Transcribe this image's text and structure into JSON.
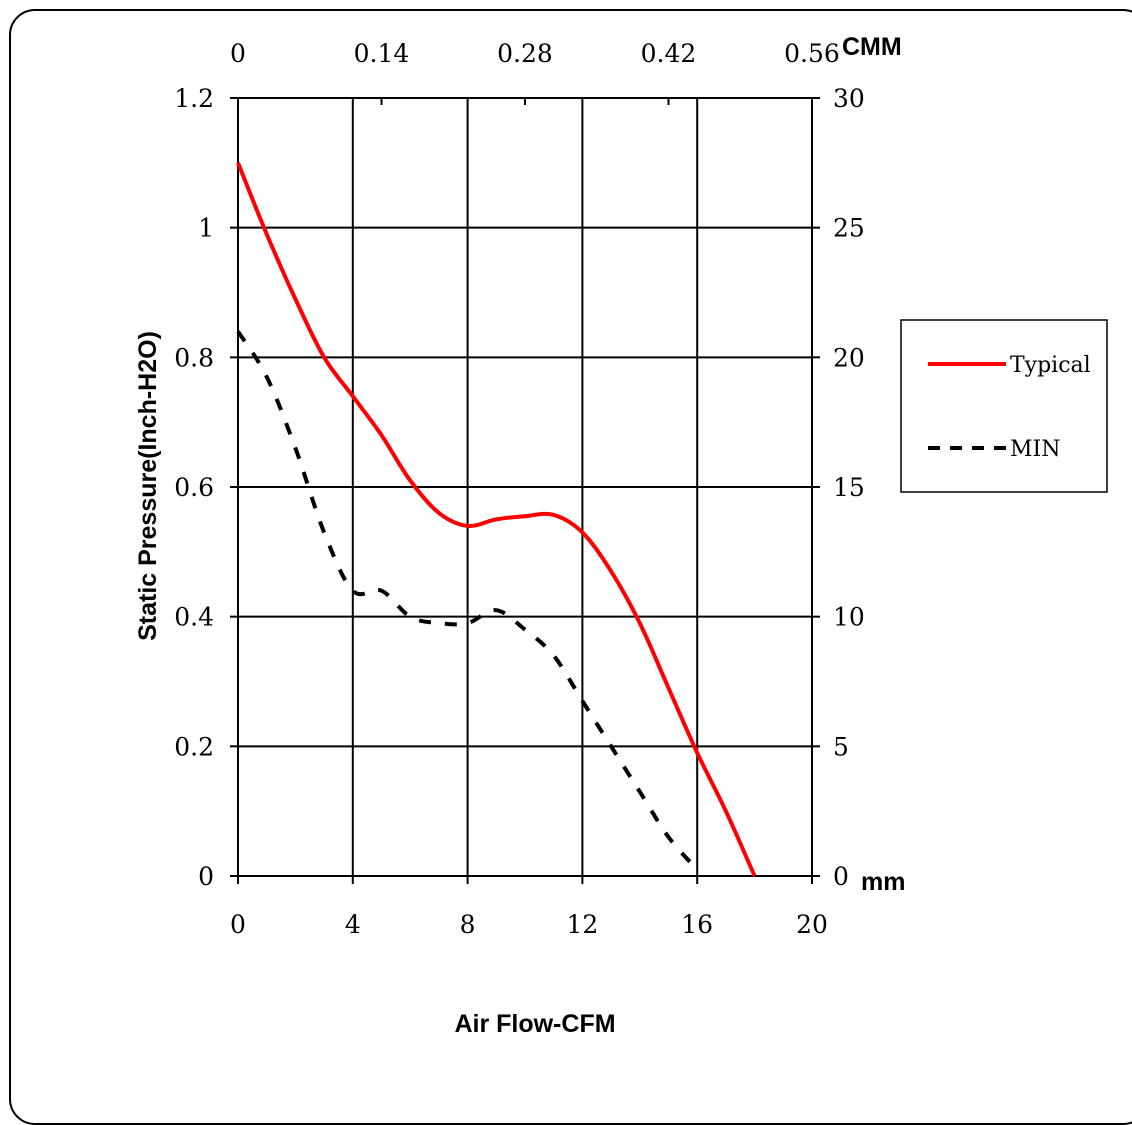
{
  "chart_data": {
    "type": "line",
    "xlabel": "Air Flow-CFM",
    "ylabel": "Static Pressure(Inch-H2O)",
    "x_ticks": [
      "0",
      "4",
      "8",
      "12",
      "16",
      "20"
    ],
    "xlim": [
      0,
      20
    ],
    "y_ticks": [
      "0",
      "0.2",
      "0.4",
      "0.6",
      "0.8",
      "1",
      "1.2"
    ],
    "ylim": [
      0,
      1.2
    ],
    "x2_label": "CMM",
    "x2_ticks": [
      "0",
      "0.14",
      "0.28",
      "0.42",
      "0.56"
    ],
    "y2_label": "mm",
    "y2_ticks": [
      "0",
      "5",
      "10",
      "15",
      "20",
      "25",
      "30"
    ],
    "grid": true,
    "legend_position": "right",
    "series": [
      {
        "name": "Typical",
        "color": "#ff0000",
        "style": "solid",
        "x": [
          0,
          1,
          2,
          3,
          4,
          5,
          6,
          7,
          8,
          9,
          10,
          11,
          12,
          13,
          14,
          15,
          16,
          17,
          18
        ],
        "y": [
          1.1,
          0.99,
          0.89,
          0.8,
          0.74,
          0.68,
          0.61,
          0.56,
          0.54,
          0.55,
          0.555,
          0.557,
          0.53,
          0.47,
          0.39,
          0.29,
          0.19,
          0.1,
          0.0
        ]
      },
      {
        "name": "MIN",
        "color": "#000000",
        "style": "dashed",
        "x": [
          0,
          1,
          2,
          3,
          4,
          5,
          6,
          7,
          8,
          9,
          10,
          11,
          12,
          13,
          14,
          15,
          16
        ],
        "y": [
          0.84,
          0.77,
          0.66,
          0.53,
          0.44,
          0.44,
          0.4,
          0.39,
          0.39,
          0.41,
          0.38,
          0.34,
          0.27,
          0.2,
          0.13,
          0.06,
          0.01
        ]
      }
    ]
  }
}
